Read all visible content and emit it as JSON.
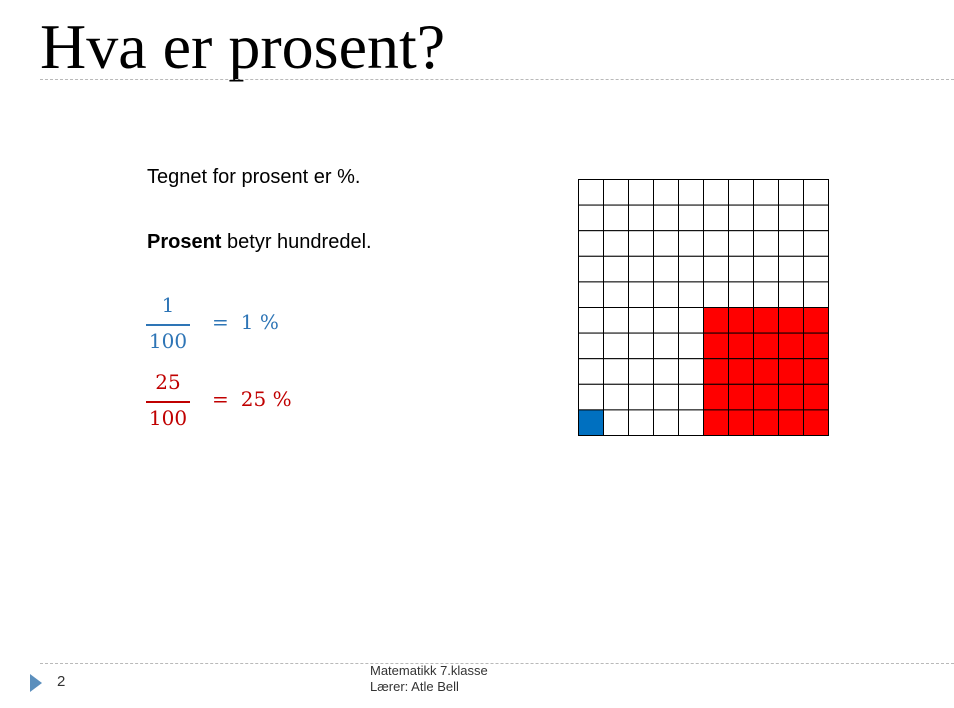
{
  "slide": {
    "title": "Hva er prosent?",
    "line1": "Tegnet for prosent er %.",
    "line2_bold": "Prosent",
    "line2_rest": " betyr hundredel."
  },
  "equations": [
    {
      "numerator": "1",
      "denominator": "100",
      "equals": "=",
      "result": "1 %",
      "color": "#2e75b6"
    },
    {
      "numerator": "25",
      "denominator": "100",
      "equals": "=",
      "result": "25 %",
      "color": "#c00000"
    }
  ],
  "grid": {
    "rows": 10,
    "cols": 10,
    "line_color": "#000000",
    "highlights": [
      {
        "label": "1 %",
        "count": 1,
        "color": "#0070c0",
        "cells": [
          [
            9,
            0
          ]
        ]
      },
      {
        "label": "25 %",
        "count": 25,
        "color": "#ff0000",
        "rows": [
          5,
          9
        ],
        "cols": [
          5,
          9
        ]
      }
    ]
  },
  "footer": {
    "page_number": "2",
    "course": "Matematikk 7.klasse",
    "teacher": "Lærer: Atle Bell"
  },
  "colors": {
    "accent_arrow": "#5b8fbd",
    "rule": "#b9b9b9"
  }
}
